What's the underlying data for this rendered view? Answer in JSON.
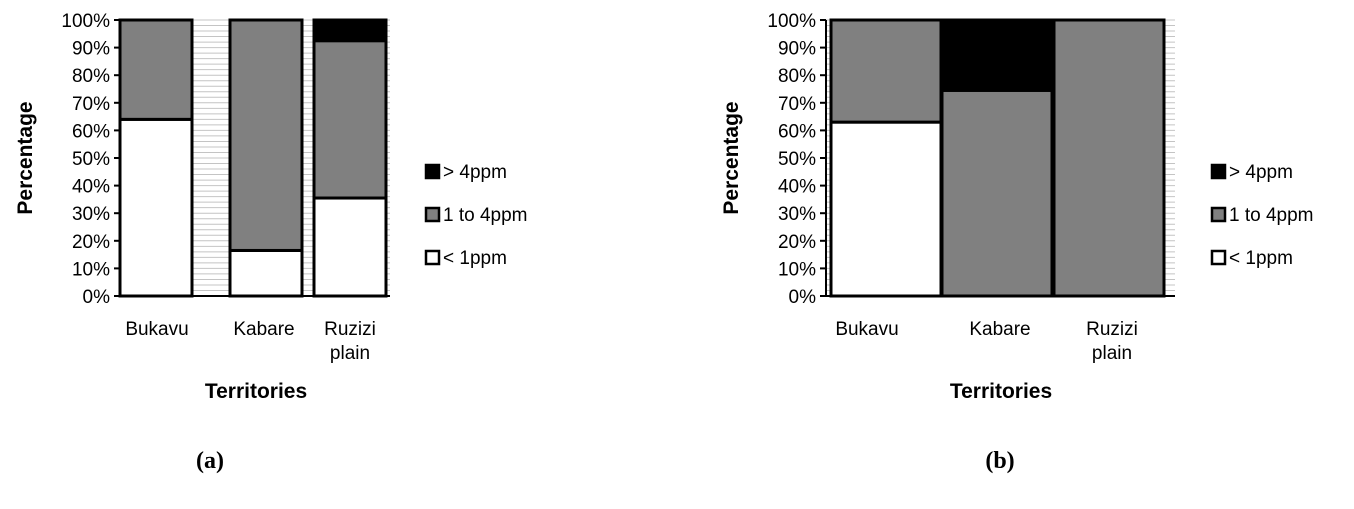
{
  "chart_data": [
    {
      "type": "bar",
      "stacked": true,
      "panel_label": "(a)",
      "categories": [
        [
          "Bukavu"
        ],
        [
          "Kabare"
        ],
        [
          "Ruzizi",
          "plain"
        ]
      ],
      "series": [
        {
          "name": "< 1ppm",
          "values": [
            64,
            16.5,
            35.5
          ],
          "color": "#ffffff"
        },
        {
          "name": "1 to 4ppm",
          "values": [
            36,
            83.5,
            57
          ],
          "color": "#808080"
        },
        {
          "name": "> 4ppm",
          "values": [
            0,
            0,
            7.5
          ],
          "color": "#000000"
        }
      ],
      "legend_order": [
        "> 4ppm",
        "1 to 4ppm",
        "< 1ppm"
      ],
      "ylabel": "Percentage",
      "xlabel": "Territories",
      "ylim": [
        0,
        100
      ],
      "yticks": [
        "0%",
        "10%",
        "20%",
        "30%",
        "40%",
        "50%",
        "60%",
        "70%",
        "80%",
        "90%",
        "100%"
      ],
      "grid": true,
      "legend_position": "right"
    },
    {
      "type": "bar",
      "stacked": true,
      "panel_label": "(b)",
      "categories": [
        [
          "Bukavu"
        ],
        [
          "Kabare"
        ],
        [
          "Ruzizi",
          "plain"
        ]
      ],
      "series": [
        {
          "name": "< 1ppm",
          "values": [
            63,
            0,
            0
          ],
          "color": "#ffffff"
        },
        {
          "name": "1 to 4ppm",
          "values": [
            37,
            74.5,
            100
          ],
          "color": "#808080"
        },
        {
          "name": "> 4ppm",
          "values": [
            0,
            25.5,
            0
          ],
          "color": "#000000"
        }
      ],
      "legend_order": [
        "> 4ppm",
        "1 to 4ppm",
        "< 1ppm"
      ],
      "ylabel": "Percentage",
      "xlabel": "Territories",
      "ylim": [
        0,
        100
      ],
      "yticks": [
        "0%",
        "10%",
        "20%",
        "30%",
        "40%",
        "50%",
        "60%",
        "70%",
        "80%",
        "90%",
        "100%"
      ],
      "grid": true,
      "legend_position": "right"
    }
  ]
}
